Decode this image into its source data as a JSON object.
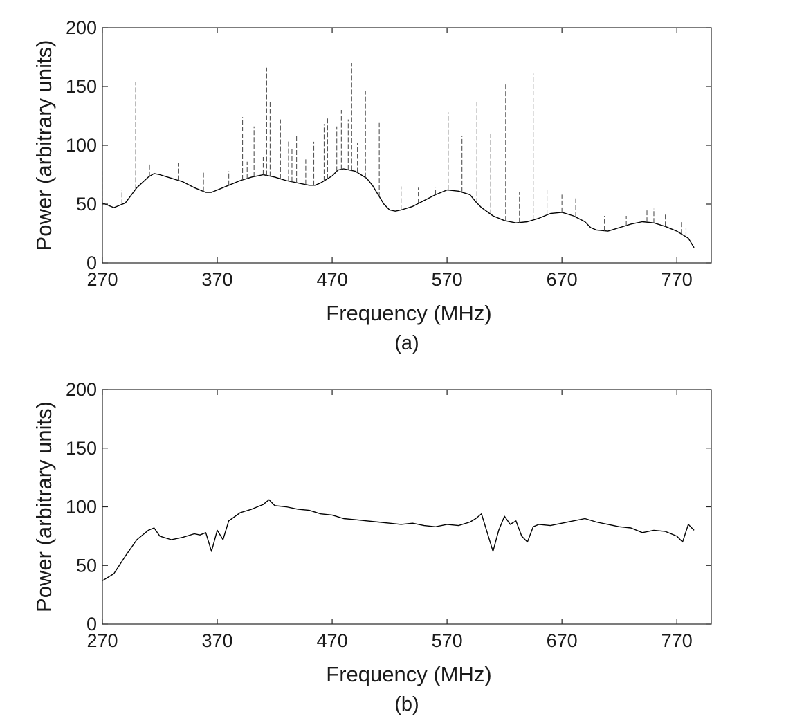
{
  "chart_data": [
    {
      "type": "line",
      "panel_label": "(a)",
      "xlabel": "Frequency (MHz)",
      "ylabel": "Power (arbitrary units)",
      "xlim": [
        270,
        800
      ],
      "ylim": [
        0,
        200
      ],
      "xticks": [
        270,
        370,
        470,
        570,
        670,
        770
      ],
      "yticks": [
        0,
        50,
        100,
        150,
        200
      ],
      "grid": false,
      "legend": "none",
      "series": [
        {
          "style": "solid",
          "color": "#000000",
          "x": [
            270,
            280,
            290,
            300,
            310,
            315,
            320,
            330,
            340,
            350,
            355,
            360,
            365,
            370,
            380,
            390,
            400,
            410,
            420,
            430,
            440,
            450,
            455,
            460,
            470,
            475,
            480,
            490,
            500,
            505,
            510,
            515,
            520,
            525,
            530,
            540,
            550,
            560,
            570,
            580,
            590,
            595,
            600,
            610,
            620,
            630,
            640,
            650,
            660,
            670,
            680,
            690,
            695,
            700,
            710,
            720,
            730,
            740,
            750,
            760,
            770,
            780,
            785
          ],
          "y": [
            51,
            47,
            51,
            64,
            73,
            76,
            75,
            72,
            69,
            64,
            62,
            60,
            60,
            62,
            66,
            70,
            73,
            75,
            73,
            70,
            68,
            66,
            66,
            68,
            74,
            79,
            80,
            78,
            72,
            66,
            58,
            50,
            45,
            44,
            45,
            48,
            53,
            58,
            62,
            61,
            58,
            52,
            47,
            40,
            36,
            34,
            35,
            38,
            42,
            43,
            40,
            35,
            30,
            28,
            27,
            30,
            33,
            35,
            34,
            31,
            27,
            21,
            13
          ]
        },
        {
          "style": "dashed",
          "color": "#555555",
          "spikes": [
            {
              "x": 270,
              "y": 78
            },
            {
              "x": 287,
              "y": 62
            },
            {
              "x": 299,
              "y": 154
            },
            {
              "x": 311,
              "y": 85
            },
            {
              "x": 336,
              "y": 85
            },
            {
              "x": 358,
              "y": 78
            },
            {
              "x": 380,
              "y": 78
            },
            {
              "x": 392,
              "y": 124
            },
            {
              "x": 396,
              "y": 86
            },
            {
              "x": 402,
              "y": 116
            },
            {
              "x": 410,
              "y": 90
            },
            {
              "x": 413,
              "y": 166
            },
            {
              "x": 416,
              "y": 137
            },
            {
              "x": 425,
              "y": 122
            },
            {
              "x": 432,
              "y": 104
            },
            {
              "x": 435,
              "y": 97
            },
            {
              "x": 439,
              "y": 110
            },
            {
              "x": 447,
              "y": 88
            },
            {
              "x": 454,
              "y": 103
            },
            {
              "x": 463,
              "y": 118
            },
            {
              "x": 466,
              "y": 124
            },
            {
              "x": 474,
              "y": 116
            },
            {
              "x": 478,
              "y": 130
            },
            {
              "x": 484,
              "y": 122
            },
            {
              "x": 487,
              "y": 170
            },
            {
              "x": 492,
              "y": 102
            },
            {
              "x": 499,
              "y": 146
            },
            {
              "x": 511,
              "y": 119
            },
            {
              "x": 530,
              "y": 65
            },
            {
              "x": 545,
              "y": 64
            },
            {
              "x": 560,
              "y": 64
            },
            {
              "x": 571,
              "y": 128
            },
            {
              "x": 583,
              "y": 108
            },
            {
              "x": 596,
              "y": 137
            },
            {
              "x": 608,
              "y": 110
            },
            {
              "x": 621,
              "y": 152
            },
            {
              "x": 633,
              "y": 60
            },
            {
              "x": 645,
              "y": 161
            },
            {
              "x": 657,
              "y": 62
            },
            {
              "x": 670,
              "y": 58
            },
            {
              "x": 682,
              "y": 57
            },
            {
              "x": 707,
              "y": 40
            },
            {
              "x": 726,
              "y": 40
            },
            {
              "x": 744,
              "y": 46
            },
            {
              "x": 750,
              "y": 46
            },
            {
              "x": 760,
              "y": 42
            },
            {
              "x": 774,
              "y": 35
            },
            {
              "x": 778,
              "y": 30
            }
          ]
        }
      ]
    },
    {
      "type": "line",
      "panel_label": "(b)",
      "xlabel": "Frequency (MHz)",
      "ylabel": "Power (arbitrary units)",
      "xlim": [
        270,
        800
      ],
      "ylim": [
        0,
        200
      ],
      "xticks": [
        270,
        370,
        470,
        570,
        670,
        770
      ],
      "yticks": [
        0,
        50,
        100,
        150,
        200
      ],
      "grid": false,
      "legend": "none",
      "series": [
        {
          "style": "solid",
          "color": "#000000",
          "x": [
            270,
            280,
            290,
            300,
            310,
            315,
            320,
            330,
            340,
            350,
            355,
            360,
            365,
            370,
            375,
            380,
            390,
            400,
            410,
            415,
            420,
            430,
            440,
            450,
            460,
            470,
            480,
            490,
            500,
            510,
            520,
            530,
            540,
            550,
            560,
            570,
            580,
            590,
            595,
            600,
            605,
            610,
            615,
            620,
            625,
            630,
            635,
            640,
            645,
            650,
            660,
            670,
            680,
            690,
            700,
            710,
            720,
            730,
            740,
            750,
            760,
            770,
            775,
            780,
            785
          ],
          "y": [
            37,
            43,
            58,
            72,
            80,
            82,
            75,
            72,
            74,
            77,
            76,
            78,
            62,
            80,
            72,
            88,
            95,
            98,
            102,
            106,
            101,
            100,
            98,
            97,
            94,
            93,
            90,
            89,
            88,
            87,
            86,
            85,
            86,
            84,
            83,
            85,
            84,
            87,
            90,
            94,
            78,
            62,
            80,
            92,
            85,
            88,
            75,
            70,
            83,
            85,
            84,
            86,
            88,
            90,
            87,
            85,
            83,
            82,
            78,
            80,
            79,
            75,
            70,
            85,
            80
          ]
        }
      ]
    }
  ]
}
